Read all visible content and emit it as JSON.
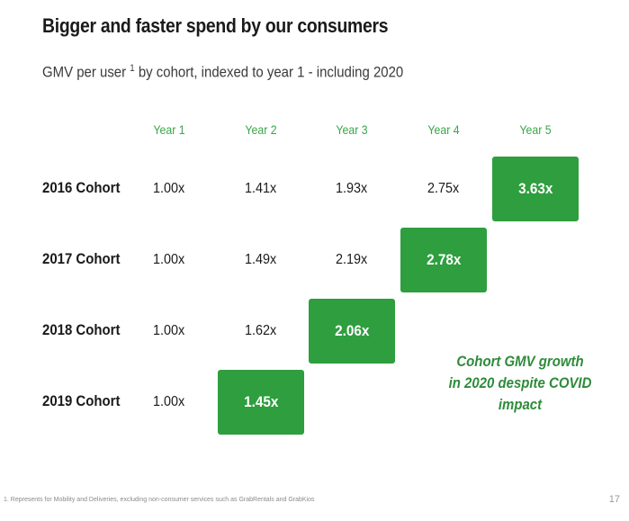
{
  "slide": {
    "title": "Bigger and faster spend by our consumers",
    "subtitle_prefix": "GMV per user",
    "subtitle_sup": "1",
    "subtitle_suffix": " by cohort, indexed to year 1 - including 2020",
    "callout_line1": "Cohort GMV growth",
    "callout_line2": "in 2020 despite COVID impact",
    "footnote": "1.     Represents for Mobility and Deliveries, excluding non-consumer services such as GrabRentals and GrabKios",
    "page_number": "17"
  },
  "colors": {
    "accent": "#2e9e3e",
    "header_text": "#3aa64a",
    "callout_text": "#2e8b3a"
  },
  "chart_data": {
    "type": "table",
    "title": "GMV per user by cohort, indexed to year 1 - including 2020",
    "columns": [
      "Year 1",
      "Year 2",
      "Year 3",
      "Year 4",
      "Year 5"
    ],
    "rows": [
      {
        "label": "2016 Cohort",
        "values": [
          "1.00x",
          "1.41x",
          "1.93x",
          "2.75x",
          "3.63x"
        ],
        "highlight_index": 4
      },
      {
        "label": "2017 Cohort",
        "values": [
          "1.00x",
          "1.49x",
          "2.19x",
          "2.78x"
        ],
        "highlight_index": 3
      },
      {
        "label": "2018 Cohort",
        "values": [
          "1.00x",
          "1.62x",
          "2.06x"
        ],
        "highlight_index": 2
      },
      {
        "label": "2019 Cohort",
        "values": [
          "1.00x",
          "1.45x"
        ],
        "highlight_index": 1
      }
    ]
  }
}
